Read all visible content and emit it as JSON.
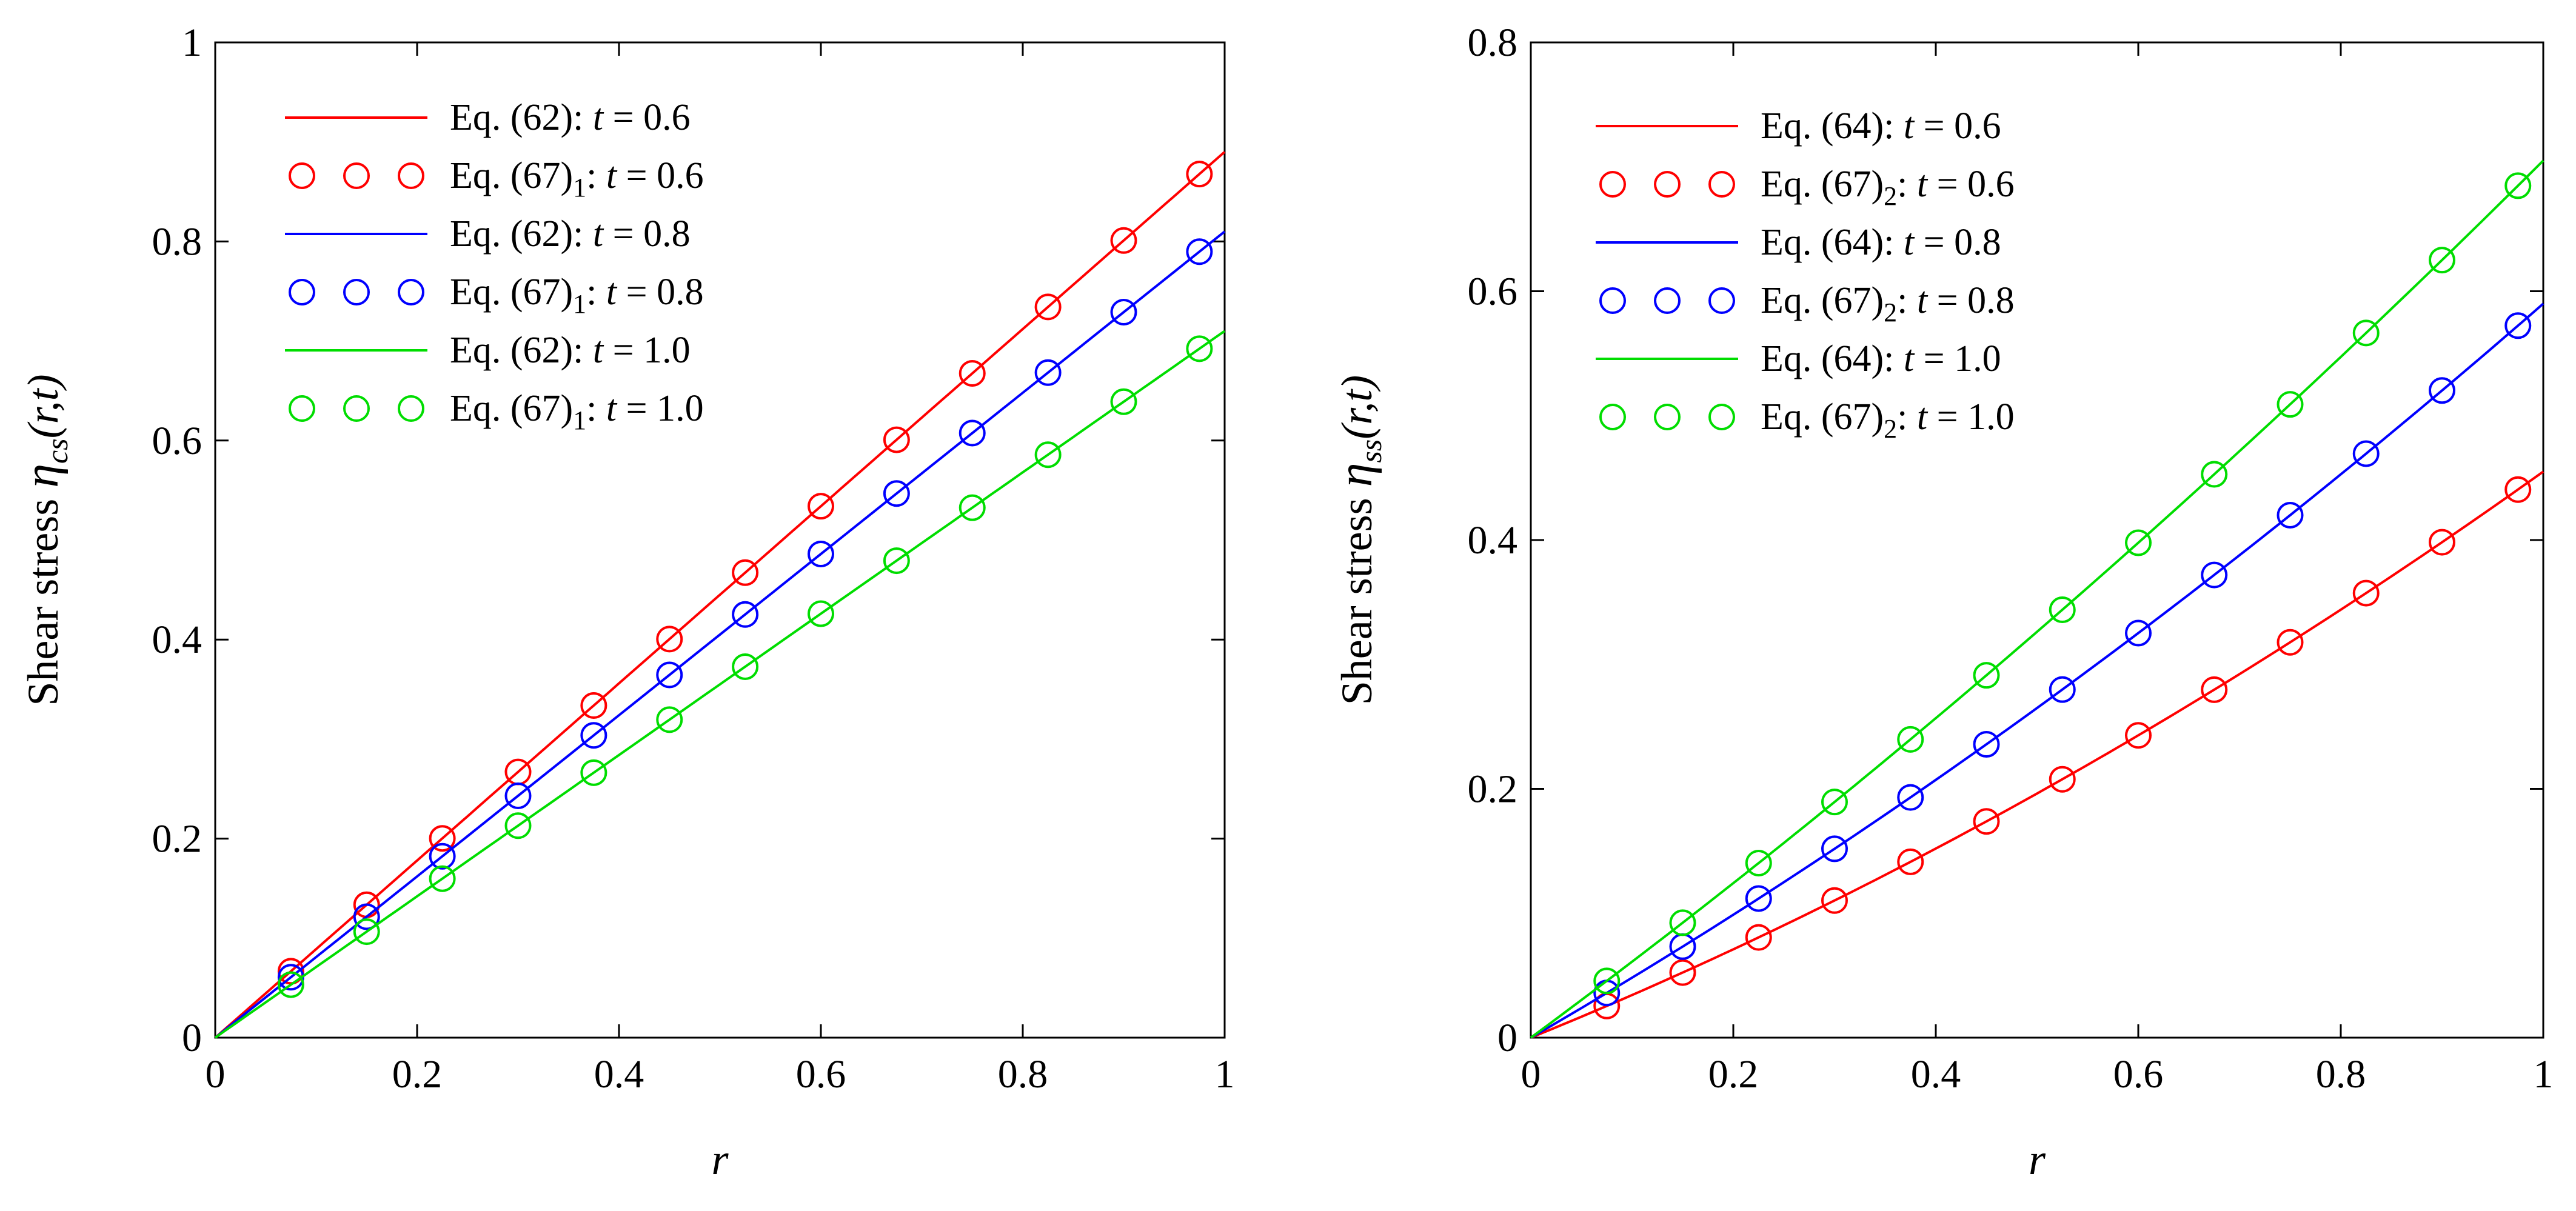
{
  "chart_data": [
    {
      "type": "line",
      "ylabel": {
        "prefix": "Shear stress ",
        "symbol": "η",
        "sub": "cs",
        "args": "(r,t)"
      },
      "xlabel": "r",
      "xlim": [
        0,
        1
      ],
      "ylim": [
        0,
        1
      ],
      "xticks": [
        "0",
        "0.2",
        "0.4",
        "0.6",
        "0.8",
        "1"
      ],
      "yticks": [
        "0",
        "0.2",
        "0.4",
        "0.6",
        "0.8",
        "1"
      ],
      "legend_position": "top-left",
      "markers_x": [
        0.075,
        0.15,
        0.225,
        0.3,
        0.375,
        0.45,
        0.525,
        0.6,
        0.675,
        0.75,
        0.825,
        0.9,
        0.975
      ],
      "series": [
        {
          "name": "Eq. (62):  t = 0.6",
          "style": "line",
          "color": "#ff0000",
          "slope": 0.89,
          "curv": 0.0,
          "legend": {
            "eq": "Eq. (62):",
            "sub": "",
            "t": "t",
            "eqsign": " = 0.6"
          }
        },
        {
          "name": "Eq. (67)1: t = 0.6",
          "style": "circles",
          "color": "#ff0000",
          "slope": 0.89,
          "curv": 0.0,
          "legend": {
            "eq": "Eq. (67)",
            "sub": "1",
            "t": "t",
            "eqsign": " = 0.6"
          }
        },
        {
          "name": "Eq. (62):  t = 0.8",
          "style": "line",
          "color": "#0000ff",
          "slope": 0.81,
          "curv": 0.0,
          "legend": {
            "eq": "Eq. (62):",
            "sub": "",
            "t": "t",
            "eqsign": " = 0.8"
          }
        },
        {
          "name": "Eq. (67)1: t = 0.8",
          "style": "circles",
          "color": "#0000ff",
          "slope": 0.81,
          "curv": 0.0,
          "legend": {
            "eq": "Eq. (67)",
            "sub": "1",
            "t": "t",
            "eqsign": " = 0.8"
          }
        },
        {
          "name": "Eq. (62):  t = 1.0",
          "style": "line",
          "color": "#00dd00",
          "slope": 0.71,
          "curv": 0.0,
          "legend": {
            "eq": "Eq. (62):",
            "sub": "",
            "t": "t",
            "eqsign": " = 1.0"
          }
        },
        {
          "name": "Eq. (67)1: t = 1.0",
          "style": "circles",
          "color": "#00dd00",
          "slope": 0.71,
          "curv": 0.0,
          "legend": {
            "eq": "Eq. (67)",
            "sub": "1",
            "t": "t",
            "eqsign": " = 1.0"
          }
        }
      ]
    },
    {
      "type": "line",
      "ylabel": {
        "prefix": "Shear stress ",
        "symbol": "η",
        "sub": "ss",
        "args": "(r,t)"
      },
      "xlabel": "r",
      "xlim": [
        0,
        1
      ],
      "ylim": [
        0,
        0.8
      ],
      "xticks": [
        "0",
        "0.2",
        "0.4",
        "0.6",
        "0.8",
        "1"
      ],
      "yticks": [
        "0",
        "0.2",
        "0.4",
        "0.6",
        "0.8"
      ],
      "legend_position": "top-left",
      "markers_x": [
        0.075,
        0.15,
        0.225,
        0.3,
        0.375,
        0.45,
        0.525,
        0.6,
        0.675,
        0.75,
        0.825,
        0.9,
        0.975
      ],
      "series": [
        {
          "name": "Eq. (64):  t = 0.6",
          "style": "line",
          "color": "#ff0000",
          "slope": 0.33,
          "curv": 0.125,
          "legend": {
            "eq": "Eq. (64):",
            "sub": "",
            "t": "t",
            "eqsign": " = 0.6"
          }
        },
        {
          "name": "Eq. (67)2: t = 0.6",
          "style": "circles",
          "color": "#ff0000",
          "slope": 0.33,
          "curv": 0.125,
          "legend": {
            "eq": "Eq. (67)",
            "sub": "2",
            "t": "t",
            "eqsign": " = 0.6"
          }
        },
        {
          "name": "Eq. (64):  t = 0.8",
          "style": "line",
          "color": "#0000ff",
          "slope": 0.47,
          "curv": 0.12,
          "legend": {
            "eq": "Eq. (64):",
            "sub": "",
            "t": "t",
            "eqsign": " = 0.8"
          }
        },
        {
          "name": "Eq. (67)2: t = 0.8",
          "style": "circles",
          "color": "#0000ff",
          "slope": 0.47,
          "curv": 0.12,
          "legend": {
            "eq": "Eq. (67)",
            "sub": "2",
            "t": "t",
            "eqsign": " = 0.8"
          }
        },
        {
          "name": "Eq. (64):  t = 1.0",
          "style": "line",
          "color": "#00dd00",
          "slope": 0.6,
          "curv": 0.105,
          "legend": {
            "eq": "Eq. (64):",
            "sub": "",
            "t": "t",
            "eqsign": " = 1.0"
          }
        },
        {
          "name": "Eq. (67)2: t = 1.0",
          "style": "circles",
          "color": "#00dd00",
          "slope": 0.6,
          "curv": 0.105,
          "legend": {
            "eq": "Eq. (67)",
            "sub": "2",
            "t": "t",
            "eqsign": " = 1.0"
          }
        }
      ]
    }
  ]
}
